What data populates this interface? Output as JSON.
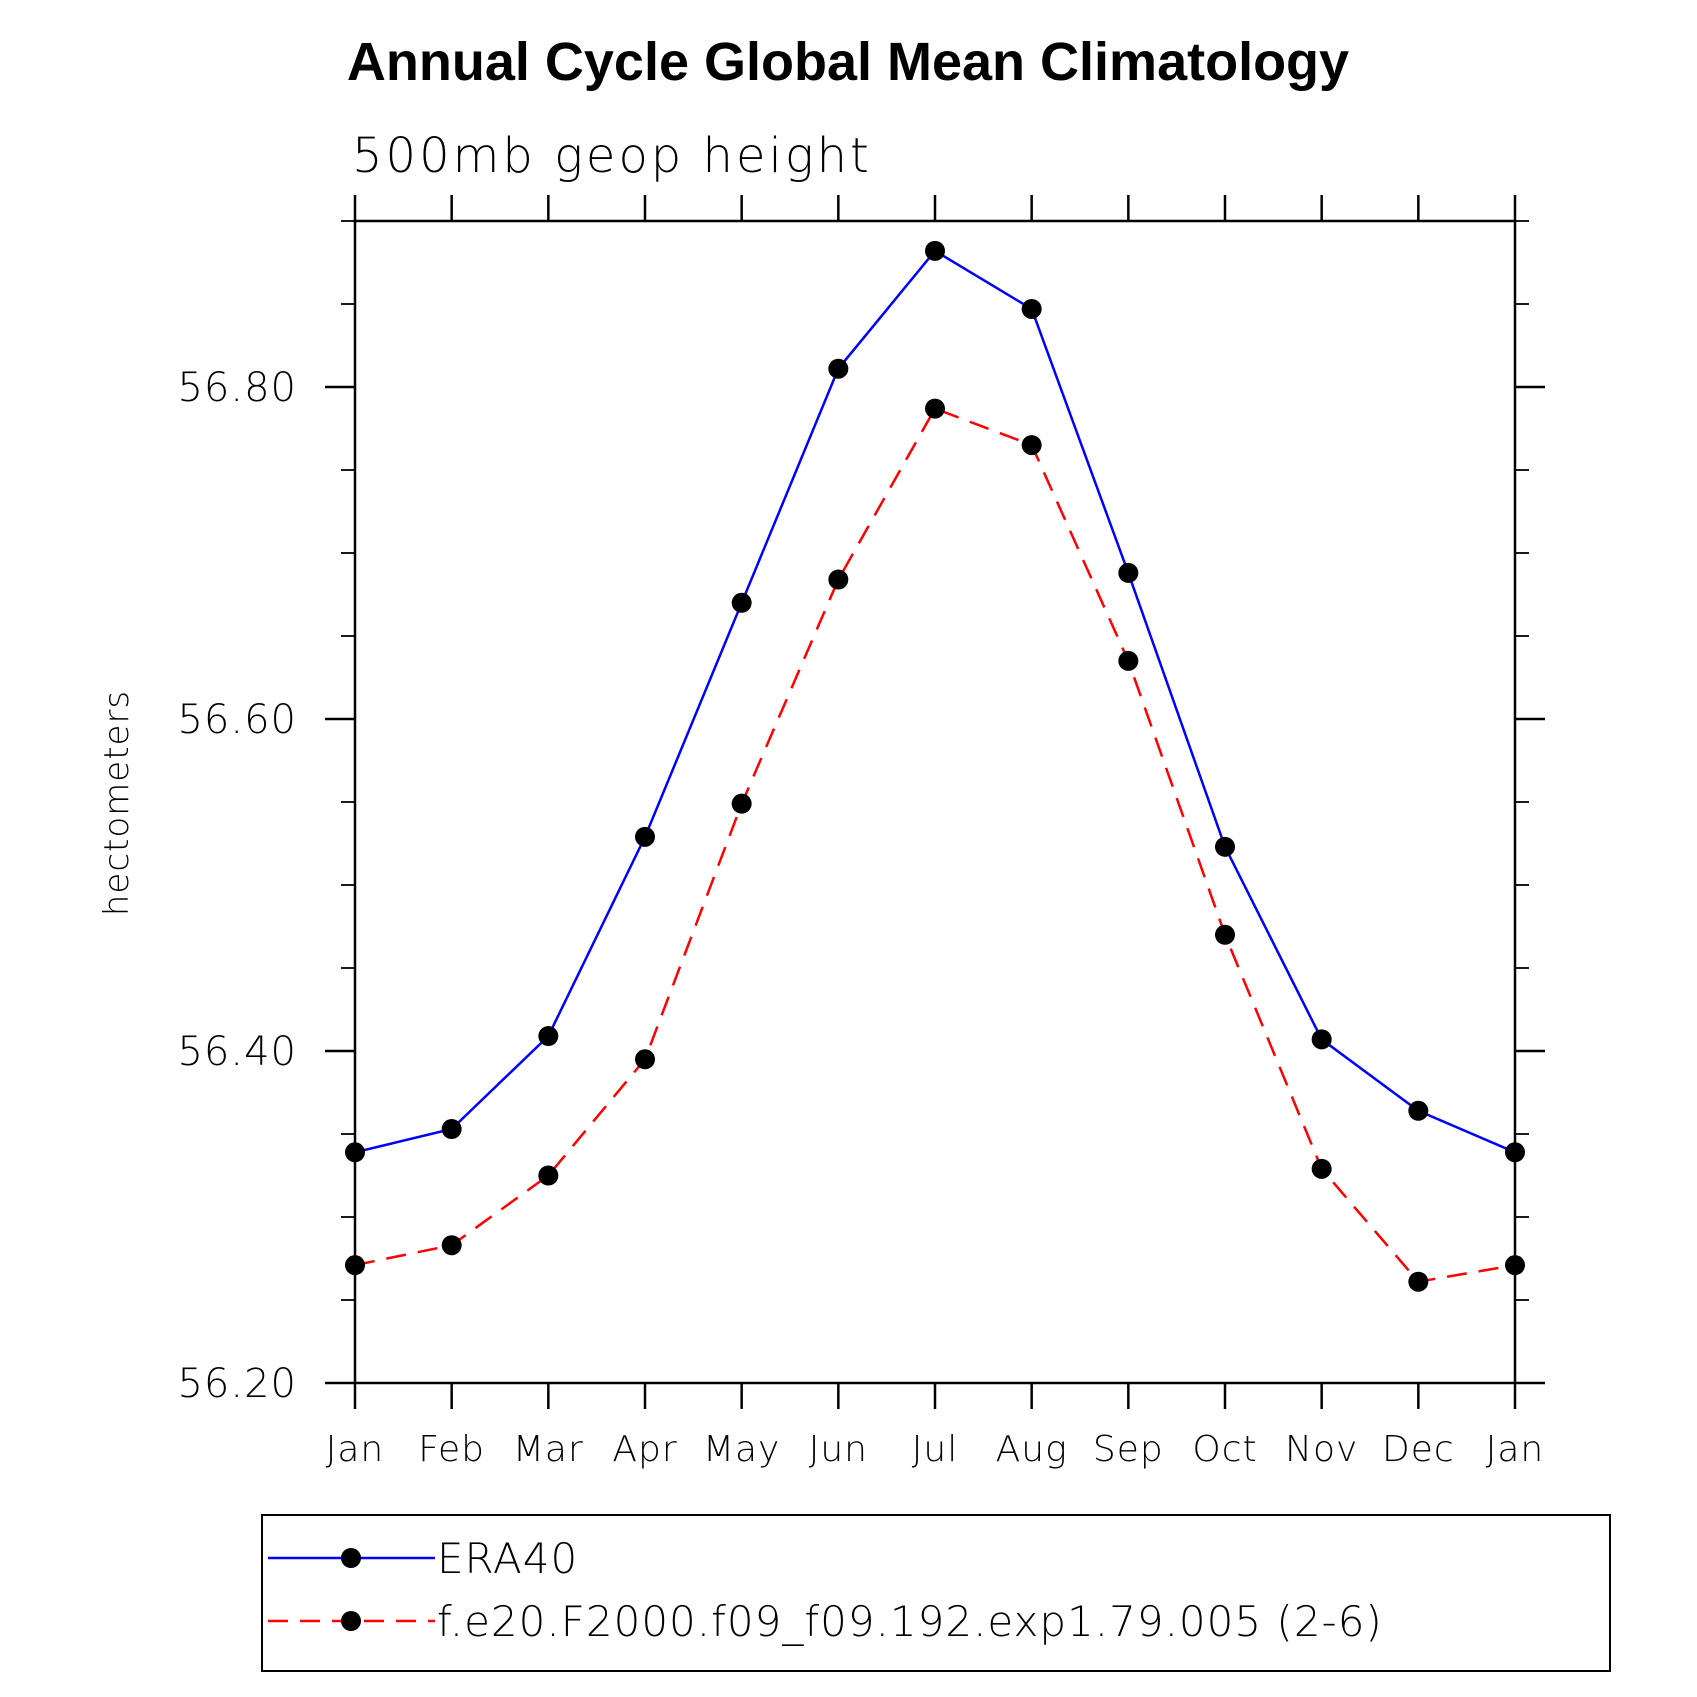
{
  "chart_data": {
    "type": "line",
    "title": "Annual Cycle Global Mean Climatology",
    "subtitle": "500mb geop height",
    "xlabel": "",
    "ylabel": "hectometers",
    "ylim": [
      56.2,
      56.9
    ],
    "yticks": [
      "56.20",
      "56.40",
      "56.60",
      "56.80"
    ],
    "ytick_values": [
      56.2,
      56.4,
      56.6,
      56.8
    ],
    "categories": [
      "Jan",
      "Feb",
      "Mar",
      "Apr",
      "May",
      "Jun",
      "Jul",
      "Aug",
      "Sep",
      "Oct",
      "Nov",
      "Dec",
      "Jan"
    ],
    "grid": false,
    "legend_position": "bottom",
    "series": [
      {
        "name": "ERA40",
        "color": "#0000ff",
        "line_style": "solid",
        "marker": "filled-circle",
        "values": [
          56.339,
          56.353,
          56.409,
          56.529,
          56.67,
          56.811,
          56.882,
          56.847,
          56.688,
          56.523,
          56.407,
          56.364,
          56.339
        ]
      },
      {
        "name": "f.e20.F2000.f09_f09.192.exp1.79.005 (2-6)",
        "color": "#ff0000",
        "line_style": "dashed",
        "marker": "filled-circle",
        "values": [
          56.271,
          56.283,
          56.325,
          56.395,
          56.549,
          56.684,
          56.787,
          56.765,
          56.635,
          56.47,
          56.329,
          56.261,
          56.271
        ]
      }
    ]
  }
}
